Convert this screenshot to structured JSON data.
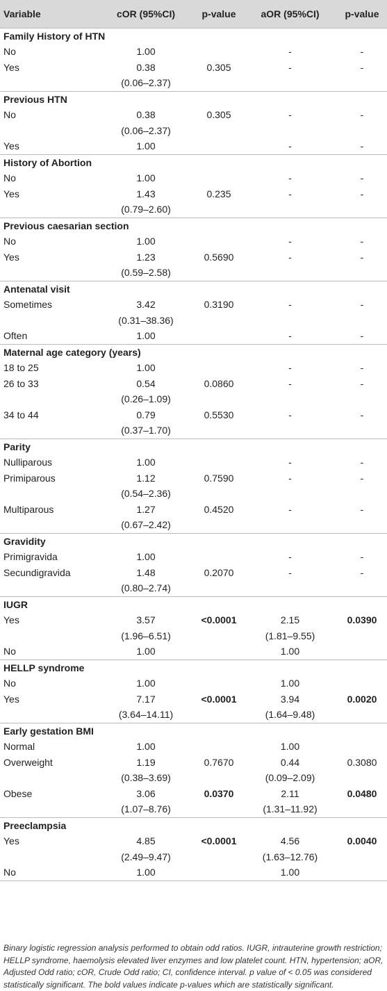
{
  "header": {
    "variable": "Variable",
    "cor": "cOR (95%CI)",
    "p1": "p-value",
    "aor": "aOR (95%CI)",
    "p2": "p-value"
  },
  "sections": [
    {
      "title": "Family History of HTN",
      "rows": [
        {
          "label": "No",
          "cor": "1.00",
          "cor_ci": "",
          "p1": "",
          "aor": "-",
          "aor_ci": "",
          "p2": "-"
        },
        {
          "label": "Yes",
          "cor": "0.38",
          "cor_ci": "(0.06–2.37)",
          "p1": "0.305",
          "aor": "-",
          "aor_ci": "",
          "p2": "-"
        }
      ]
    },
    {
      "title": "Previous HTN",
      "rows": [
        {
          "label": "No",
          "cor": "0.38",
          "cor_ci": "(0.06–2.37)",
          "p1": "0.305",
          "aor": "-",
          "aor_ci": "",
          "p2": "-"
        },
        {
          "label": "Yes",
          "cor": "1.00",
          "cor_ci": "",
          "p1": "",
          "aor": "-",
          "aor_ci": "",
          "p2": "-"
        }
      ]
    },
    {
      "title": "History of Abortion",
      "rows": [
        {
          "label": "No",
          "cor": "1.00",
          "cor_ci": "",
          "p1": "",
          "aor": "-",
          "aor_ci": "",
          "p2": "-"
        },
        {
          "label": "Yes",
          "cor": "1.43",
          "cor_ci": "(0.79–2.60)",
          "p1": "0.235",
          "aor": "-",
          "aor_ci": "",
          "p2": "-"
        }
      ]
    },
    {
      "title": "Previous caesarian section",
      "rows": [
        {
          "label": "No",
          "cor": "1.00",
          "cor_ci": "",
          "p1": "",
          "aor": "-",
          "aor_ci": "",
          "p2": "-"
        },
        {
          "label": "Yes",
          "cor": "1.23",
          "cor_ci": "(0.59–2.58)",
          "p1": "0.5690",
          "aor": "-",
          "aor_ci": "",
          "p2": "-"
        }
      ]
    },
    {
      "title": "Antenatal visit",
      "rows": [
        {
          "label": "Sometimes",
          "cor": "3.42",
          "cor_ci": "(0.31–38.36)",
          "p1": "0.3190",
          "aor": "-",
          "aor_ci": "",
          "p2": "-"
        },
        {
          "label": "Often",
          "cor": "1.00",
          "cor_ci": "",
          "p1": "",
          "aor": "-",
          "aor_ci": "",
          "p2": "-"
        }
      ]
    },
    {
      "title": "Maternal age category (years)",
      "rows": [
        {
          "label": "18 to 25",
          "cor": "1.00",
          "cor_ci": "",
          "p1": "",
          "aor": "-",
          "aor_ci": "",
          "p2": "-"
        },
        {
          "label": "26 to 33",
          "cor": "0.54",
          "cor_ci": "(0.26–1.09)",
          "p1": "0.0860",
          "aor": "-",
          "aor_ci": "",
          "p2": "-"
        },
        {
          "label": "34 to 44",
          "cor": "0.79",
          "cor_ci": "(0.37–1.70)",
          "p1": "0.5530",
          "aor": "-",
          "aor_ci": "",
          "p2": "-"
        }
      ]
    },
    {
      "title": "Parity",
      "rows": [
        {
          "label": "Nulliparous",
          "cor": "1.00",
          "cor_ci": "",
          "p1": "",
          "aor": "-",
          "aor_ci": "",
          "p2": "-"
        },
        {
          "label": "Primiparous",
          "cor": "1.12",
          "cor_ci": "(0.54–2.36)",
          "p1": "0.7590",
          "aor": "-",
          "aor_ci": "",
          "p2": "-"
        },
        {
          "label": "Multiparous",
          "cor": "1.27",
          "cor_ci": "(0.67–2.42)",
          "p1": "0.4520",
          "aor": "-",
          "aor_ci": "",
          "p2": "-"
        }
      ]
    },
    {
      "title": "Gravidity",
      "rows": [
        {
          "label": "Primigravida",
          "cor": "1.00",
          "cor_ci": "",
          "p1": "",
          "aor": "-",
          "aor_ci": "",
          "p2": "-"
        },
        {
          "label": "Secundigravida",
          "cor": "1.48",
          "cor_ci": "(0.80–2.74)",
          "p1": "0.2070",
          "aor": "-",
          "aor_ci": "",
          "p2": "-"
        }
      ]
    },
    {
      "title": "IUGR",
      "rows": [
        {
          "label": "Yes",
          "cor": "3.57",
          "cor_ci": "(1.96–6.51)",
          "p1": "<0.0001",
          "p1_bold": true,
          "aor": "2.15",
          "aor_ci": "(1.81–9.55)",
          "p2": "0.0390",
          "p2_bold": true
        },
        {
          "label": "No",
          "cor": "1.00",
          "cor_ci": "",
          "p1": "",
          "aor": "1.00",
          "aor_ci": "",
          "p2": ""
        }
      ]
    },
    {
      "title": "HELLP syndrome",
      "rows": [
        {
          "label": "No",
          "cor": "1.00",
          "cor_ci": "",
          "p1": "",
          "aor": "1.00",
          "aor_ci": "",
          "p2": ""
        },
        {
          "label": "Yes",
          "cor": "7.17",
          "cor_ci": "(3.64–14.11)",
          "p1": "<0.0001",
          "p1_bold": true,
          "aor": "3.94",
          "aor_ci": "(1.64–9.48)",
          "p2": "0.0020",
          "p2_bold": true
        }
      ]
    },
    {
      "title": "Early gestation BMI",
      "rows": [
        {
          "label": "Normal",
          "cor": "1.00",
          "cor_ci": "",
          "p1": "",
          "aor": "1.00",
          "aor_ci": "",
          "p2": ""
        },
        {
          "label": "Overweight",
          "cor": "1.19",
          "cor_ci": "(0.38–3.69)",
          "p1": "0.7670",
          "aor": "0.44",
          "aor_ci": "(0.09–2.09)",
          "p2": "0.3080"
        },
        {
          "label": "Obese",
          "cor": "3.06",
          "cor_ci": "(1.07–8.76)",
          "p1": "0.0370",
          "p1_bold": true,
          "aor": "2.11",
          "aor_ci": "(1.31–11.92)",
          "p2": "0.0480",
          "p2_bold": true
        }
      ]
    },
    {
      "title": "Preeclampsia",
      "rows": [
        {
          "label": "Yes",
          "cor": "4.85",
          "cor_ci": "(2.49–9.47)",
          "p1": "<0.0001",
          "p1_bold": true,
          "aor": "4.56",
          "aor_ci": "(1.63–12.76)",
          "p2": "0.0040",
          "p2_bold": true
        },
        {
          "label": "No",
          "cor": "1.00",
          "cor_ci": "",
          "p1": "",
          "aor": "1.00",
          "aor_ci": "",
          "p2": ""
        }
      ]
    }
  ],
  "footnote": "Binary logistic regression analysis performed to obtain odd ratios. IUGR, intrauterine growth restriction; HELLP syndrome, haemolysis elevated liver enzymes and low platelet count. HTN, hypertension; aOR, Adjusted Odd ratio; cOR, Crude Odd ratio; CI, confidence interval. p value of < 0.05 was considered statistically significant. The bold values indicate p-values which are statistically significant."
}
